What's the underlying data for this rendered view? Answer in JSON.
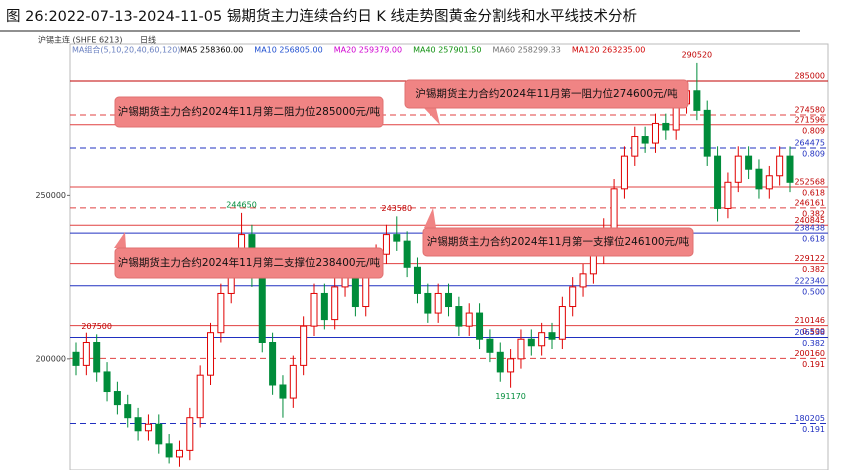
{
  "chart_data": {
    "type": "candlestick",
    "title": "图 26:2022-07-13-2024-11-05 锡期货主力连续合约日 K 线走势图黄金分割线和水平线技术分析",
    "instrument": "沪锡主连 (SHFE 6213)",
    "period": "日线",
    "ma_group": "MA组合(5,10,20,40,60,120)",
    "ma_legend": [
      {
        "text": "MA5 258360.00",
        "color": "#000000"
      },
      {
        "text": "MA10 256805.00",
        "color": "#1f4fd0"
      },
      {
        "text": "MA20 259379.00",
        "color": "#d000d0"
      },
      {
        "text": "MA40 257901.50",
        "color": "#109010"
      },
      {
        "text": "MA60 258299.33",
        "color": "#707070"
      },
      {
        "text": "MA120 263235.00",
        "color": "#d00000"
      }
    ],
    "ylim": [
      166000,
      296300
    ],
    "yticks": [
      200000,
      250000
    ],
    "up_color": "#e00000",
    "down_color": "#008c3a",
    "open": [
      202000,
      198000,
      205000,
      196000,
      190000,
      186000,
      182000,
      178000,
      180000,
      174000,
      170000,
      172000,
      182000,
      195000,
      208000,
      220000,
      230000,
      238000,
      225000,
      205000,
      192000,
      188000,
      198000,
      210000,
      220000,
      212000,
      222000,
      225000,
      216000,
      228000,
      232000,
      238000,
      236000,
      228000,
      220000,
      214000,
      220000,
      216000,
      210000,
      214000,
      206000,
      202000,
      196000,
      200000,
      206000,
      204000,
      208000,
      206000,
      216000,
      222000,
      226000,
      232000,
      240000,
      252000,
      262000,
      268000,
      266000,
      272000,
      270000,
      278000,
      282000,
      276000,
      262000,
      246000,
      254000,
      262000,
      258000,
      252000,
      256000,
      262000
    ],
    "high": [
      205000,
      208000,
      207500,
      199000,
      193000,
      189000,
      185000,
      183000,
      183000,
      177000,
      175000,
      185000,
      198000,
      211000,
      223000,
      233000,
      244650,
      241000,
      228000,
      208000,
      195000,
      201000,
      213000,
      223000,
      223000,
      225000,
      228000,
      228000,
      231000,
      235000,
      241000,
      243580,
      239000,
      231000,
      223000,
      223000,
      223000,
      219000,
      217000,
      217000,
      209000,
      205000,
      203000,
      209000,
      209000,
      211000,
      211000,
      219000,
      225000,
      229000,
      235000,
      243000,
      255000,
      265000,
      271000,
      271000,
      275000,
      275000,
      281000,
      285000,
      290520,
      279000,
      265000,
      257000,
      265000,
      265000,
      261000,
      259000,
      265000,
      265000
    ],
    "low": [
      195000,
      195000,
      193000,
      187000,
      183000,
      179000,
      175000,
      175000,
      171000,
      168000,
      167000,
      169000,
      179000,
      192000,
      205000,
      217000,
      227000,
      222000,
      202000,
      189000,
      182000,
      185000,
      195000,
      207000,
      209000,
      209000,
      219000,
      213000,
      213000,
      225000,
      229000,
      233000,
      225000,
      217000,
      211000,
      211000,
      213000,
      207000,
      207000,
      203000,
      199000,
      193000,
      191170,
      197000,
      201000,
      201000,
      203000,
      203000,
      213000,
      219000,
      223000,
      229000,
      237000,
      249000,
      259000,
      263000,
      263000,
      267000,
      267000,
      275000,
      273000,
      259000,
      242000,
      243000,
      251000,
      255000,
      249000,
      249000,
      253000,
      251000
    ],
    "close": [
      198000,
      205000,
      196000,
      190000,
      186000,
      182000,
      178000,
      180000,
      174000,
      170000,
      172000,
      182000,
      195000,
      208000,
      220000,
      230000,
      238000,
      225000,
      205000,
      192000,
      188000,
      198000,
      210000,
      220000,
      212000,
      222000,
      225000,
      216000,
      228000,
      232000,
      238000,
      236000,
      228000,
      220000,
      214000,
      220000,
      216000,
      210000,
      214000,
      206000,
      202000,
      196000,
      200000,
      206000,
      204000,
      208000,
      206000,
      216000,
      222000,
      226000,
      232000,
      240000,
      252000,
      262000,
      268000,
      266000,
      272000,
      270000,
      278000,
      282000,
      276000,
      262000,
      246000,
      254000,
      262000,
      258000,
      252000,
      256000,
      262000,
      254000
    ],
    "levels": [
      {
        "value": 285000,
        "color": "#c00000",
        "dashed": false
      },
      {
        "value": 274580,
        "color": "#e04040",
        "dashed": true
      },
      {
        "value": 271596,
        "color": "#e04040",
        "dashed": false,
        "ratio": "0.809"
      },
      {
        "value": 264475,
        "color": "#2030c0",
        "dashed": true,
        "ratio": "0.809"
      },
      {
        "value": 252568,
        "color": "#e04040",
        "dashed": false,
        "ratio": "0.618"
      },
      {
        "value": 246161,
        "color": "#e04040",
        "dashed": true,
        "ratio": "0.382"
      },
      {
        "value": 240845,
        "color": "#e04040",
        "dashed": false
      },
      {
        "value": 238438,
        "color": "#2030c0",
        "dashed": false,
        "ratio": "0.618"
      },
      {
        "value": 229122,
        "color": "#e04040",
        "dashed": false,
        "ratio": "0.382"
      },
      {
        "value": 222340,
        "color": "#2030c0",
        "dashed": false,
        "ratio": "0.500"
      },
      {
        "value": 210146,
        "color": "#e04040",
        "dashed": false,
        "ratio": "0.500"
      },
      {
        "value": 206538,
        "color": "#2030c0",
        "dashed": false,
        "ratio": "0.382"
      },
      {
        "value": 200160,
        "color": "#e04040",
        "dashed": true,
        "ratio": "0.191"
      },
      {
        "value": 180205,
        "color": "#2030c0",
        "dashed": true,
        "ratio": "0.191"
      }
    ],
    "callouts": [
      "沪锡期货主力合约2024年11月第一阻力位274600元/吨",
      "沪锡期货主力合约2024年11月第二阻力位285000元/吨",
      "沪锡期货主力合约2024年11月第一支撑位246100元/吨",
      "沪锡期货主力合约2024年11月第二支撑位238400元/吨"
    ]
  }
}
